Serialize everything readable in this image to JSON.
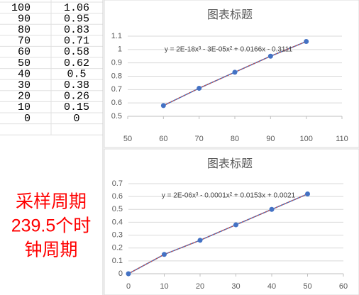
{
  "table": {
    "rows": [
      [
        100,
        1.06
      ],
      [
        90,
        0.95
      ],
      [
        80,
        0.83
      ],
      [
        70,
        0.71
      ],
      [
        60,
        0.58
      ],
      [
        50,
        0.62
      ],
      [
        40,
        0.5
      ],
      [
        30,
        0.38
      ],
      [
        20,
        0.26
      ],
      [
        10,
        0.15
      ],
      [
        0,
        0
      ]
    ]
  },
  "note": {
    "lines": [
      "采样周期",
      "239.5个时",
      "钟周期"
    ],
    "color": "#ff0000"
  },
  "chart_data": [
    {
      "type": "scatter",
      "title": "图表标题",
      "series": [
        {
          "color": "#4472c4",
          "x": [
            60,
            70,
            80,
            90,
            100
          ],
          "values": [
            0.58,
            0.71,
            0.83,
            0.95,
            1.06
          ]
        }
      ],
      "trendline": {
        "label": "y = 2E-18x³ - 3E-05x² + 0.0166x - 0.3111",
        "color": "#c0504d"
      },
      "xlim": [
        50,
        110
      ],
      "xticks": [
        50,
        60,
        70,
        80,
        90,
        100,
        110
      ],
      "ylim": [
        0.5,
        1.1
      ],
      "yticks": [
        0.5,
        0.6,
        0.7,
        0.8,
        0.9,
        1,
        1.1
      ],
      "grid": true
    },
    {
      "type": "scatter",
      "title": "图表标题",
      "series": [
        {
          "color": "#4472c4",
          "x": [
            0,
            10,
            20,
            30,
            40,
            50
          ],
          "values": [
            0,
            0.15,
            0.26,
            0.38,
            0.5,
            0.62
          ]
        }
      ],
      "trendline": {
        "label": "y = 2E-06x³ - 0.0001x² + 0.0153x + 0.0021",
        "color": "#c0504d"
      },
      "xlim": [
        0,
        60
      ],
      "xticks": [
        0,
        10,
        20,
        30,
        40,
        50,
        60
      ],
      "ylim": [
        0,
        0.7
      ],
      "yticks": [
        0,
        0.1,
        0.2,
        0.3,
        0.4,
        0.5,
        0.6,
        0.7
      ],
      "grid": true
    }
  ]
}
